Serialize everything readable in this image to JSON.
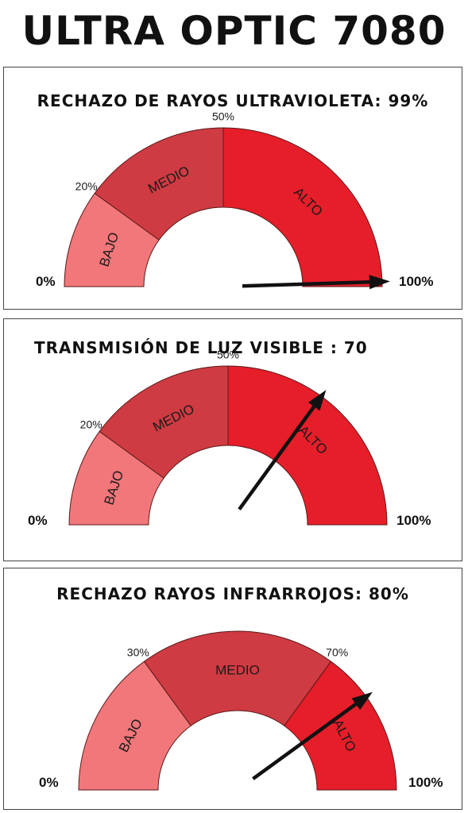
{
  "page": {
    "title": "ULTRA OPTIC 7080"
  },
  "colors": {
    "low": "#f2777a",
    "mid": "#cf3b42",
    "high": "#e61e2a",
    "needle": "#111111",
    "outline": "#5a1a1a"
  },
  "gauges": [
    {
      "title": "RECHAZO DE RAYOS ULTRAVIOLETA: 99%",
      "value_percent": 99,
      "min_label": "0%",
      "max_label": "100%",
      "low_threshold_label": "20%",
      "high_threshold_label": "50%",
      "low_threshold": 20,
      "high_threshold": 50,
      "zones": [
        "BAJO",
        "MEDIO",
        "ALTO"
      ]
    },
    {
      "title": "TRANSMISIÓN DE LUZ VISIBLE : 70",
      "value_percent": 70,
      "min_label": "0%",
      "max_label": "100%",
      "low_threshold_label": "20%",
      "high_threshold_label": "50%",
      "low_threshold": 20,
      "high_threshold": 50,
      "zones": [
        "BAJO",
        "MEDIO",
        "ALTO"
      ]
    },
    {
      "title": "RECHAZO RAYOS INFRARROJOS: 80%",
      "value_percent": 80,
      "min_label": "0%",
      "max_label": "100%",
      "low_threshold_label": "30%",
      "high_threshold_label": "70%",
      "low_threshold": 30,
      "high_threshold": 70,
      "zones": [
        "BAJO",
        "MEDIO",
        "ALTO"
      ]
    }
  ]
}
